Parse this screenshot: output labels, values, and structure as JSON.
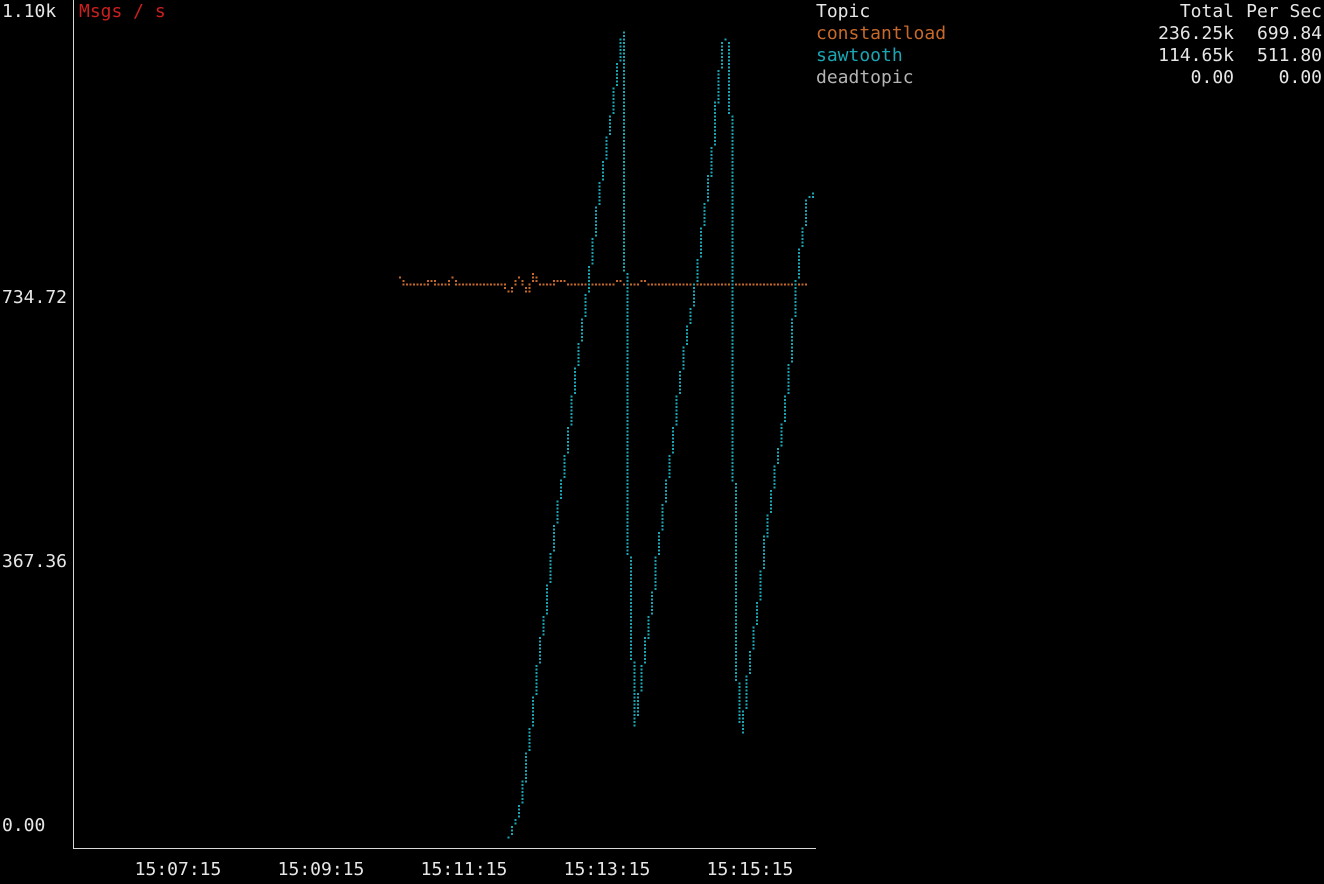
{
  "chart_data": {
    "type": "line",
    "title": "Msgs / s",
    "title_color": "#cc1f1f",
    "xlabel": "",
    "ylabel": "",
    "y_ticks": [
      "1.10k",
      "734.72",
      "367.36",
      "0.00"
    ],
    "y_tick_values": [
      1102.08,
      734.72,
      367.36,
      0
    ],
    "ylim": [
      0,
      1102.08
    ],
    "x_ticks": [
      "15:07:15",
      "15:09:15",
      "15:11:15",
      "15:13:15",
      "15:15:15"
    ],
    "x_tick_values": [
      435,
      555,
      675,
      795,
      915
    ],
    "xlim": [
      384,
      1008
    ],
    "grid": false,
    "series": [
      {
        "name": "constantload",
        "color": "#c8692b",
        "x": [
          658,
          662,
          666,
          670,
          674,
          678,
          682,
          686,
          690,
          694,
          698,
          702,
          706,
          710,
          714,
          718,
          722,
          726,
          730,
          734,
          738,
          742,
          746,
          750,
          754,
          758,
          762,
          766,
          770,
          774,
          778,
          782,
          786,
          790,
          794,
          798,
          802,
          806,
          810,
          814,
          818,
          822,
          826,
          830,
          834,
          838,
          842,
          846,
          850,
          854,
          858,
          862,
          866,
          870,
          874,
          878,
          882,
          886,
          890,
          894,
          898,
          902,
          906,
          910,
          914,
          918,
          922,
          926,
          930,
          934,
          938,
          942,
          946,
          950,
          954,
          958,
          962,
          966,
          970,
          974,
          978,
          982,
          986,
          990,
          994,
          998
        ],
        "values": [
          743,
          734,
          734,
          734,
          734,
          734,
          737,
          737,
          734,
          734,
          734,
          743,
          734,
          734,
          734,
          734,
          734,
          734,
          734,
          734,
          734,
          734,
          734,
          724,
          734,
          743,
          734,
          724,
          747,
          734,
          734,
          734,
          734,
          740,
          740,
          734,
          734,
          734,
          734,
          734,
          734,
          734,
          734,
          734,
          734,
          734,
          740,
          734,
          734,
          734,
          734,
          740,
          734,
          734,
          734,
          734,
          734,
          734,
          734,
          734,
          734,
          734,
          734,
          734,
          734,
          734,
          734,
          734,
          734,
          734,
          734,
          734,
          734,
          734,
          734,
          734,
          734,
          734,
          734,
          734,
          734,
          734,
          734,
          734,
          734,
          734
        ]
      },
      {
        "name": "sawtooth",
        "color": "#1aa6b4",
        "x": [
          750,
          755,
          760,
          765,
          770,
          775,
          780,
          785,
          790,
          795,
          800,
          805,
          810,
          815,
          820,
          825,
          830,
          835,
          840,
          845,
          850,
          855,
          860,
          865,
          870,
          875,
          880,
          885,
          890,
          895,
          900,
          905,
          910,
          915,
          920,
          925,
          930,
          935,
          940,
          945,
          950,
          955,
          960,
          965,
          970,
          975,
          980,
          985,
          990,
          995,
          1000,
          1005
        ],
        "values": [
          0,
          23,
          51,
          115,
          174,
          249,
          299,
          373,
          432,
          482,
          541,
          615,
          666,
          721,
          787,
          854,
          903,
          955,
          1011,
          1070,
          390,
          152,
          207,
          264,
          316,
          389,
          446,
          504,
          568,
          629,
          681,
          721,
          781,
          846,
          902,
          1000,
          1061,
          1050,
          232,
          140,
          215,
          270,
          327,
          403,
          457,
          505,
          555,
          621,
          721,
          788,
          845,
          856
        ]
      },
      {
        "name": "deadtopic",
        "color": "#b4b4b4",
        "x": [],
        "values": []
      }
    ]
  },
  "legend": {
    "header": {
      "topic": "Topic",
      "total": "Total",
      "rate": "Per Sec"
    },
    "rows": [
      {
        "topic": "constantload",
        "total": "236.25k",
        "rate": "699.84",
        "color": "#c8692b"
      },
      {
        "topic": "sawtooth",
        "total": "114.65k",
        "rate": "511.80",
        "color": "#1aa6b4"
      },
      {
        "topic": "deadtopic",
        "total": "0.00",
        "rate": "0.00",
        "color": "#b4b4b4"
      }
    ]
  }
}
